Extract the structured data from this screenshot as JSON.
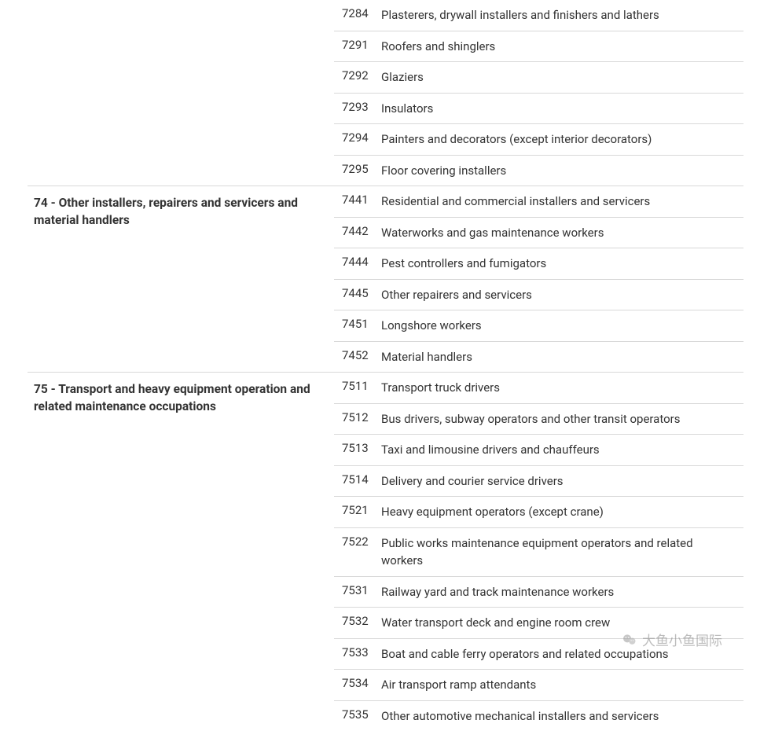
{
  "sections": [
    {
      "category": "",
      "rows": [
        {
          "code": "7284",
          "desc": "Plasterers, drywall installers and finishers and lathers"
        },
        {
          "code": "7291",
          "desc": "Roofers and shinglers"
        },
        {
          "code": "7292",
          "desc": "Glaziers"
        },
        {
          "code": "7293",
          "desc": "Insulators"
        },
        {
          "code": "7294",
          "desc": "Painters and decorators (except interior decorators)"
        },
        {
          "code": "7295",
          "desc": "Floor covering installers"
        }
      ]
    },
    {
      "category": "74 - Other installers, repairers and servicers and material handlers",
      "rows": [
        {
          "code": "7441",
          "desc": "Residential and commercial installers and servicers"
        },
        {
          "code": "7442",
          "desc": "Waterworks and gas maintenance workers"
        },
        {
          "code": "7444",
          "desc": "Pest controllers and fumigators"
        },
        {
          "code": "7445",
          "desc": "Other repairers and servicers"
        },
        {
          "code": "7451",
          "desc": "Longshore workers"
        },
        {
          "code": "7452",
          "desc": "Material handlers"
        }
      ]
    },
    {
      "category": "75 - Transport and heavy equipment operation and related maintenance occupations",
      "rows": [
        {
          "code": "7511",
          "desc": "Transport truck drivers"
        },
        {
          "code": "7512",
          "desc": "Bus drivers, subway operators and other transit operators"
        },
        {
          "code": "7513",
          "desc": "Taxi and limousine drivers and chauffeurs"
        },
        {
          "code": "7514",
          "desc": "Delivery and courier service drivers"
        },
        {
          "code": "7521",
          "desc": "Heavy equipment operators (except crane)"
        },
        {
          "code": "7522",
          "desc": "Public works maintenance equipment operators and related workers"
        },
        {
          "code": "7531",
          "desc": "Railway yard and track maintenance workers"
        },
        {
          "code": "7532",
          "desc": "Water transport deck and engine room crew"
        },
        {
          "code": "7533",
          "desc": "Boat and cable ferry operators and related occupations"
        },
        {
          "code": "7534",
          "desc": "Air transport ramp attendants"
        },
        {
          "code": "7535",
          "desc": "Other automotive mechanical installers and servicers"
        }
      ]
    }
  ],
  "watermark": {
    "text": "大鱼小鱼国际"
  },
  "styling": {
    "body_bg": "#ffffff",
    "text_color": "#333333",
    "border_color": "#d8d8d8",
    "font_size_base": 15,
    "category_font_weight": 700,
    "row_padding_y": 8,
    "category_col_width": 390,
    "code_col_width": 56,
    "watermark_color": "#888888",
    "watermark_opacity": 0.55
  }
}
